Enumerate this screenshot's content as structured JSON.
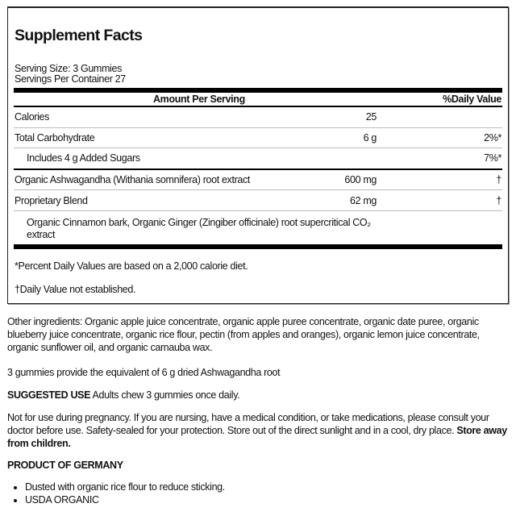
{
  "facts": {
    "title": "Supplement Facts",
    "serving_size": "Serving Size: 3 Gummies",
    "servings_per_container": "Servings Per Container 27",
    "header_amount": "Amount Per Serving",
    "header_dv": "%Daily Value",
    "rows": [
      {
        "name": "Calories",
        "amount": "25",
        "dv": ""
      },
      {
        "name": "Total Carbohydrate",
        "amount": "6 g",
        "dv": "2%*"
      },
      {
        "name": "Includes 4 g Added Sugars",
        "amount": "",
        "dv": "7%*"
      },
      {
        "name": "Organic Ashwagandha (Withania somnifera) root extract",
        "amount": "600 mg",
        "dv": "†"
      },
      {
        "name": "Proprietary Blend",
        "amount": "62 mg",
        "dv": "†"
      }
    ],
    "blend_line1": "Organic Cinnamon bark, Organic Ginger (Zingiber officinale) root supercritical CO₂",
    "blend_line2": "extract",
    "footnote_dv": "*Percent Daily Values are based on a 2,000 calorie diet.",
    "footnote_dagger": "†Daily Value not established."
  },
  "other_ingredients": "Other ingredients: Organic apple juice concentrate, organic apple puree concentrate, organic date puree, organic blueberry juice concentrate, organic rice flour, pectin (from apples and oranges), organic lemon juice concentrate, organic sunflower oil, and organic carnauba wax.",
  "equivalent": "3 gummies provide the equivalent of 6 g dried Ashwagandha root",
  "suggested_use_label": "SUGGESTED USE",
  "suggested_use_text": " Adults chew 3 gummies once daily.",
  "warning_text": "Not for use during pregnancy. If you are nursing, have a medical condition, or take medications, please consult your doctor before use. Safety-sealed for your protection. Store out of the direct sunlight and in a cool, dry place. ",
  "warning_bold": "Store away from children.",
  "origin": "PRODUCT OF GERMANY",
  "bullets": [
    "Dusted with organic rice flour to reduce sticking.",
    "USDA ORGANIC"
  ]
}
